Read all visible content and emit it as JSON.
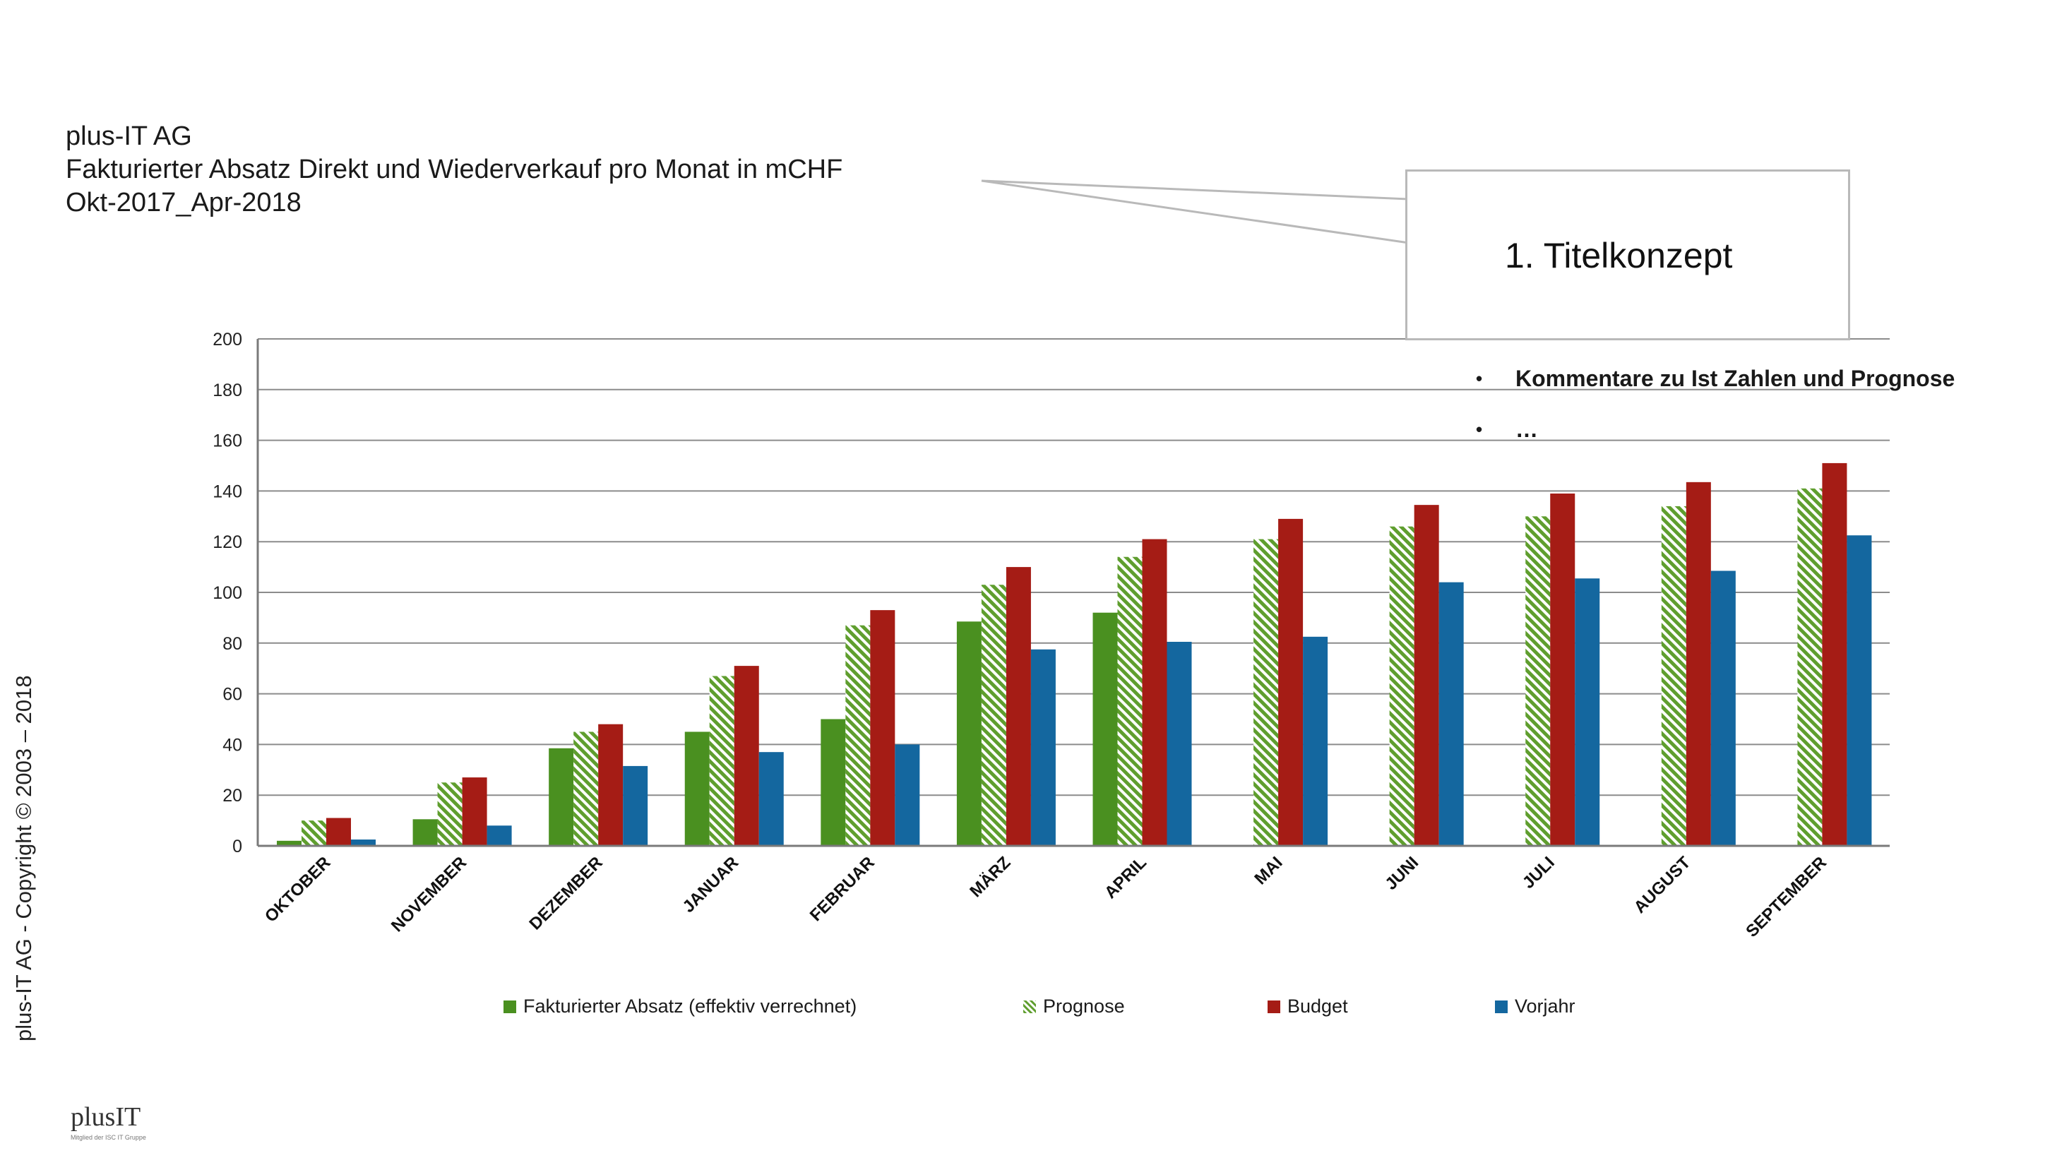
{
  "header": {
    "company": "plus-IT AG",
    "title_bold": "Fakturierter Absatz Direkt und Wiederverkauf pro Monat",
    "title_suffix": " in mCHF",
    "period": "Okt-2017_Apr-2018"
  },
  "callout": {
    "text": "1.   Titelkonzept"
  },
  "comments": [
    {
      "bullet": "•",
      "text": "Kommentare zu Ist Zahlen und Prognose"
    },
    {
      "bullet": "•",
      "text": "…"
    }
  ],
  "copyright": "plus-IT AG - Copyright © 2003 – 2018",
  "logo": {
    "text": "plusIT",
    "subtext": "Mitglied der ISC IT Gruppe"
  },
  "colors": {
    "ist": "#4a9020",
    "prognose": "#5f9e2e",
    "budget": "#a51c15",
    "vorjahr": "#14679f",
    "grid": "#8c8c8c"
  },
  "chart_data": {
    "type": "bar",
    "title": "",
    "xlabel": "",
    "ylabel": "",
    "ylim": [
      0,
      200
    ],
    "yticks": [
      0,
      20,
      40,
      60,
      80,
      100,
      120,
      140,
      160,
      180,
      200
    ],
    "grid": true,
    "legend_position": "bottom",
    "categories": [
      "OKTOBER",
      "NOVEMBER",
      "DEZEMBER",
      "JANUAR",
      "FEBRUAR",
      "MÄRZ",
      "APRIL",
      "MAI",
      "JUNI",
      "JULI",
      "AUGUST",
      "SEPTEMBER"
    ],
    "series": [
      {
        "name": "Fakturierter Absatz (effektiv verrechnet)",
        "key": "ist",
        "pattern": "solid",
        "values": [
          2,
          10.5,
          38.5,
          45,
          50,
          88.5,
          92,
          null,
          null,
          null,
          null,
          null
        ]
      },
      {
        "name": "Prognose",
        "key": "prognose",
        "pattern": "hatched",
        "values": [
          10,
          25,
          45,
          67,
          87,
          103,
          114,
          121,
          126,
          130,
          134,
          141
        ]
      },
      {
        "name": "Budget",
        "key": "budget",
        "pattern": "solid",
        "values": [
          11,
          27,
          48,
          71,
          93,
          110,
          121,
          129,
          134.5,
          139,
          143.5,
          151
        ]
      },
      {
        "name": "Vorjahr",
        "key": "vorjahr",
        "pattern": "solid",
        "values": [
          2.5,
          8,
          31.5,
          37,
          40,
          77.5,
          80.5,
          82.5,
          104,
          105.5,
          108.5,
          122.5
        ]
      }
    ]
  }
}
